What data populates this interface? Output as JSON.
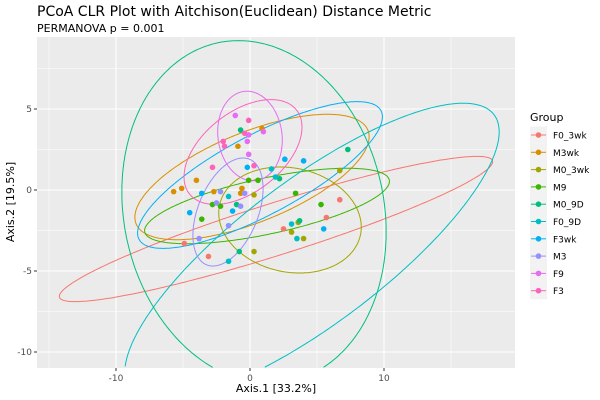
{
  "chart_data": {
    "type": "scatter",
    "title": "PCoA CLR Plot with Aitchison(Euclidean) Distance Metric",
    "subtitle": "PERMANOVA p = 0.001",
    "xlabel": "Axis.1   [33.2%]",
    "ylabel": "Axis.2   [19.5%]",
    "xlim": [
      -15.5,
      20.2
    ],
    "ylim": [
      -10.9,
      9.5
    ],
    "xticks": [
      -10,
      0,
      10
    ],
    "yticks": [
      5,
      0,
      -5,
      -10
    ],
    "grid": true,
    "legend": {
      "title": "Group",
      "placement": "right"
    },
    "series": [
      {
        "name": "F0_3wk",
        "color": "#F8766D",
        "points": [
          [
            6.7,
            -0.6
          ],
          [
            5.7,
            -1.7
          ],
          [
            2.5,
            -2.4
          ],
          [
            -4.9,
            -3.3
          ],
          [
            -3.1,
            -4.1
          ]
        ]
      },
      {
        "name": "M3wk",
        "color": "#D89000",
        "points": [
          [
            0.9,
            3.8
          ],
          [
            -0.9,
            2.7
          ],
          [
            -4.0,
            0.6
          ],
          [
            -5.7,
            -0.1
          ],
          [
            -5.1,
            0.1
          ],
          [
            -2.7,
            -0.1
          ],
          [
            -0.6,
            0.1
          ],
          [
            -0.7,
            -0.2
          ]
        ]
      },
      {
        "name": "M0_3wk",
        "color": "#A3A500",
        "points": [
          [
            0.3,
            -0.3
          ],
          [
            3.6,
            -2.0
          ],
          [
            3.1,
            -2.6
          ],
          [
            4.0,
            -3.0
          ],
          [
            0.3,
            -3.8
          ],
          [
            6.7,
            1.2
          ]
        ]
      },
      {
        "name": "M9",
        "color": "#39B600",
        "points": [
          [
            -0.1,
            0.6
          ],
          [
            0.6,
            0.6
          ],
          [
            3.4,
            -0.2
          ],
          [
            -2.8,
            -0.9
          ],
          [
            -2.2,
            -1.0
          ],
          [
            -3.6,
            -1.8
          ],
          [
            5.3,
            -0.9
          ]
        ]
      },
      {
        "name": "M0_9D",
        "color": "#00BF7D",
        "points": [
          [
            -0.7,
            3.7
          ],
          [
            2.2,
            0.7
          ],
          [
            -1.0,
            -0.9
          ],
          [
            3.7,
            -1.9
          ],
          [
            -0.8,
            -3.8
          ],
          [
            7.3,
            2.5
          ]
        ]
      },
      {
        "name": "F0_9D",
        "color": "#00BFC4",
        "points": [
          [
            1.6,
            1.3
          ],
          [
            1.9,
            0.8
          ],
          [
            -1.6,
            -0.4
          ],
          [
            3.1,
            -2.1
          ],
          [
            3.5,
            -3.0
          ],
          [
            -1.6,
            -4.4
          ]
        ]
      },
      {
        "name": "F3wk",
        "color": "#00B0F6",
        "points": [
          [
            2.6,
            1.9
          ],
          [
            4.0,
            1.8
          ],
          [
            -0.2,
            1.4
          ],
          [
            -3.6,
            -0.2
          ],
          [
            -1.3,
            -1.3
          ],
          [
            -4.5,
            -1.4
          ],
          [
            5.5,
            -2.4
          ]
        ]
      },
      {
        "name": "M3",
        "color": "#9590FF",
        "points": [
          [
            -2.2,
            -0.1
          ],
          [
            -0.4,
            -0.2
          ],
          [
            -2.5,
            -0.8
          ],
          [
            -0.7,
            -1.0
          ],
          [
            -1.6,
            -2.2
          ],
          [
            -3.8,
            -3.0
          ]
        ]
      },
      {
        "name": "F9",
        "color": "#E76BF3",
        "points": [
          [
            -1.1,
            4.6
          ],
          [
            -0.1,
            3.4
          ],
          [
            1.0,
            3.6
          ],
          [
            -0.2,
            3.0
          ],
          [
            -0.1,
            2.2
          ]
        ]
      },
      {
        "name": "F3",
        "color": "#FF62BC",
        "points": [
          [
            -0.1,
            4.3
          ],
          [
            -0.4,
            3.5
          ],
          [
            -2.0,
            3.0
          ],
          [
            -1.9,
            2.7
          ],
          [
            -2.8,
            1.4
          ],
          [
            0.3,
            1.5
          ]
        ]
      }
    ]
  }
}
